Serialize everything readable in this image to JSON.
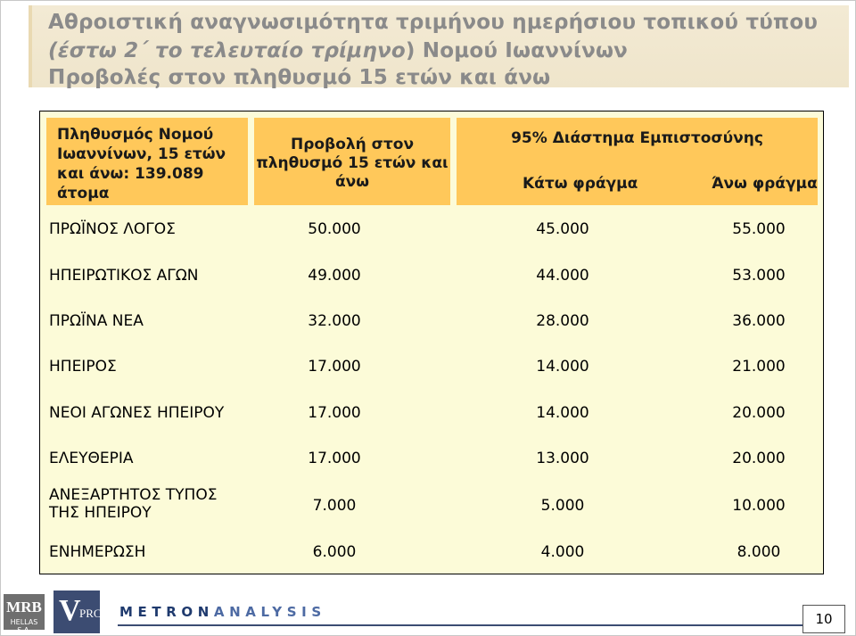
{
  "title": {
    "line1": "Αθροιστική αναγνωσιμότητα τριμήνου ημερήσιου τοπικού τύπου",
    "line2_italic": "(έστω 2΄ το τελευταίο τρίμηνο",
    "line2_rest": ") Νομού Ιωαννίνων",
    "line3": "Προβολές στον πληθυσμό 15 ετών και άνω"
  },
  "table": {
    "header_population": "Πληθυσμός Νομού Ιωαννίνων, 15 ετών και άνω: 139.089 άτομα",
    "header_projection": "Προβολή στον πληθυσμό 15 ετών και άνω",
    "header_ci": "95% Διάστημα Εμπιστοσύνης",
    "header_lower": "Κάτω φράγμα",
    "header_upper": "Άνω φράγμα",
    "rows": [
      {
        "name": "ΠΡΩΪΝΟΣ ΛΟΓΟΣ",
        "projection": "50.000",
        "lower": "45.000",
        "upper": "55.000"
      },
      {
        "name": "ΗΠΕΙΡΩΤΙΚΟΣ ΑΓΩΝ",
        "projection": "49.000",
        "lower": "44.000",
        "upper": "53.000"
      },
      {
        "name": "ΠΡΩΪΝΑ ΝΕΑ",
        "projection": "32.000",
        "lower": "28.000",
        "upper": "36.000"
      },
      {
        "name": "ΗΠΕΙΡΟΣ",
        "projection": "17.000",
        "lower": "14.000",
        "upper": "21.000"
      },
      {
        "name": "ΝΕΟΙ ΑΓΩΝΕΣ ΗΠΕΙΡΟΥ",
        "projection": "17.000",
        "lower": "14.000",
        "upper": "20.000"
      },
      {
        "name": "ΕΛΕΥΘΕΡΙΑ",
        "projection": "17.000",
        "lower": "13.000",
        "upper": "20.000"
      },
      {
        "name_line1": "ΑΝΕΞΑΡΤΗΤΟΣ ΤΥΠΟΣ",
        "name_line2": "ΤΗΣ ΗΠΕΙΡΟΥ",
        "projection": "7.000",
        "lower": "5.000",
        "upper": "10.000"
      },
      {
        "name": "ΕΝΗΜΕΡΩΣΗ",
        "projection": "6.000",
        "lower": "4.000",
        "upper": "8.000"
      }
    ]
  },
  "footer": {
    "mrb_logo": "MRB",
    "mrb_sub": "HELLAS S.A.",
    "vprc_logo_v": "V",
    "vprc_logo_rest": "PRC",
    "metron_part1": "METRON",
    "metron_part2": "ANALYSIS",
    "page_number": "10"
  },
  "colors": {
    "header_fill": "#ffc85a",
    "table_fill": "#fcfbd8",
    "title_band": "#f0e6cd",
    "title_text": "#8a8a8a"
  }
}
